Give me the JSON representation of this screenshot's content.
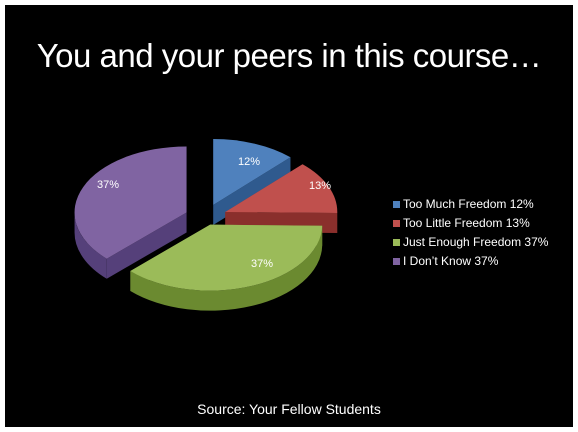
{
  "slide": {
    "title": "You and your peers in this course…",
    "source": "Source: Your Fellow Students",
    "background": "#000000"
  },
  "chart_data": {
    "type": "pie",
    "title": "",
    "exploded": true,
    "three_d": true,
    "legend_position": "right",
    "slices": [
      {
        "label": "Too Much Freedom",
        "value": 12,
        "data_label": "12%",
        "legend": "Too Much Freedom 12%",
        "color": "#4f81bd",
        "side_color": "#2f5a8e"
      },
      {
        "label": "Too Little Freedom",
        "value": 13,
        "data_label": "13%",
        "legend": "Too Little Freedom 13%",
        "color": "#c0504d",
        "side_color": "#8a2f2c"
      },
      {
        "label": "Just Enough Freedom",
        "value": 37,
        "data_label": "37%",
        "legend": "Just Enough Freedom 37%",
        "color": "#9bbb59",
        "side_color": "#6b8a30"
      },
      {
        "label": "I Don’t Know",
        "value": 37,
        "data_label": "37%",
        "legend": "I Don’t Know 37%",
        "color": "#8064a2",
        "side_color": "#55407a"
      }
    ]
  }
}
